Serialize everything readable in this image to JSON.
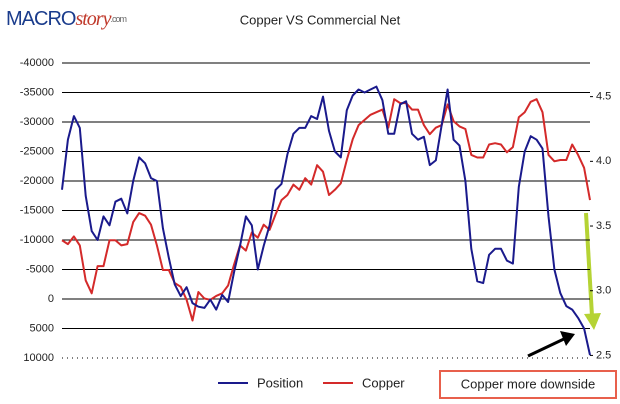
{
  "logo": {
    "main": "MACRO",
    "accent": "story",
    "suffix": ".com"
  },
  "chart_data": {
    "type": "line",
    "title": "Copper VS Commercial Net",
    "annotation": "Copper more downside",
    "ylim": [
      -40000,
      10000
    ],
    "y_inverted": true,
    "yticks": [
      -40000,
      -35000,
      -30000,
      -25000,
      -20000,
      -15000,
      -10000,
      -5000,
      0,
      5000,
      10000
    ],
    "y2lim": [
      2.48,
      4.76
    ],
    "y2ticks": [
      4.5,
      {
        "value": 4,
        "label": "4.0"
      },
      3.5,
      {
        "value": 3,
        "label": "3.0"
      },
      2.5
    ],
    "grid": true,
    "series": [
      {
        "name": "Position",
        "color": "#1a1a8c",
        "values": [
          -18500,
          -27000,
          -31000,
          -29000,
          -17500,
          -11500,
          -10000,
          -14000,
          -12500,
          -16500,
          -17000,
          -14500,
          -20000,
          -24000,
          -23000,
          -20500,
          -20000,
          -12000,
          -7000,
          -2500,
          -500,
          -2000,
          700,
          1300,
          1500,
          100,
          1800,
          -700,
          500,
          -4500,
          -9000,
          -14000,
          -12500,
          -5000,
          -9000,
          -12500,
          -18500,
          -19500,
          -24500,
          -28000,
          -29000,
          -29000,
          -31000,
          -30500,
          -34300,
          -28500,
          -25000,
          -24000,
          -32000,
          -34500,
          -35500,
          -35000,
          -35500,
          -36000,
          -33700,
          -28000,
          -28000,
          -33000,
          -33500,
          -28000,
          -27000,
          -27500,
          -22700,
          -23500,
          -29500,
          -35500,
          -27000,
          -26000,
          -20000,
          -8500,
          -3000,
          -2700,
          -7500,
          -8500,
          -8500,
          -6500,
          -6000,
          -19000,
          -25000,
          -27600,
          -27000,
          -25500,
          -14000,
          -5000,
          -1000,
          1200,
          1800,
          3200,
          5000,
          9500
        ]
      },
      {
        "name": "Copper",
        "color": "#d42a2a",
        "axis": "y2",
        "values": [
          3.39,
          3.36,
          3.42,
          3.35,
          3.08,
          2.98,
          3.19,
          3.19,
          3.39,
          3.39,
          3.35,
          3.36,
          3.53,
          3.6,
          3.58,
          3.51,
          3.35,
          3.16,
          3.16,
          3.06,
          3.03,
          2.93,
          2.77,
          2.99,
          2.94,
          2.93,
          2.96,
          2.98,
          3.04,
          3.2,
          3.35,
          3.31,
          3.45,
          3.41,
          3.51,
          3.47,
          3.59,
          3.7,
          3.74,
          3.82,
          3.78,
          3.87,
          3.82,
          3.97,
          3.92,
          3.74,
          3.78,
          3.83,
          4.01,
          4.17,
          4.28,
          4.32,
          4.36,
          4.38,
          4.4,
          4.26,
          4.48,
          4.45,
          4.45,
          4.4,
          4.4,
          4.28,
          4.21,
          4.26,
          4.28,
          4.44,
          4.31,
          4.27,
          4.25,
          4.05,
          4.03,
          4.03,
          4.13,
          4.14,
          4.13,
          4.07,
          4.11,
          4.34,
          4.38,
          4.46,
          4.48,
          4.38,
          4.05,
          4,
          4.01,
          4.01,
          4.13,
          4.05,
          3.95,
          3.7
        ]
      }
    ]
  }
}
